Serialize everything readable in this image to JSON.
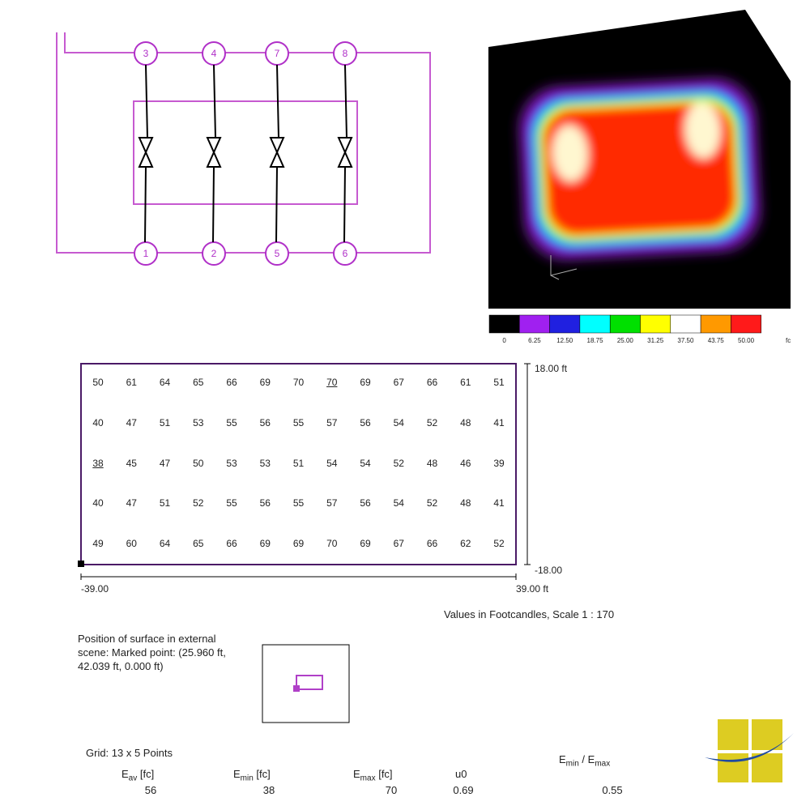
{
  "luminaires": {
    "top": [
      "3",
      "4",
      "7",
      "8"
    ],
    "bottom": [
      "1",
      "2",
      "5",
      "6"
    ]
  },
  "color_scale": {
    "labels": [
      "0",
      "6.25",
      "12.50",
      "18.75",
      "25.00",
      "31.25",
      "37.50",
      "43.75",
      "50.00"
    ],
    "unit": "fc"
  },
  "grid_values": [
    [
      50,
      61,
      64,
      65,
      66,
      69,
      70,
      70,
      69,
      67,
      66,
      61,
      51
    ],
    [
      40,
      47,
      51,
      53,
      55,
      56,
      55,
      57,
      56,
      54,
      52,
      48,
      41
    ],
    [
      38,
      45,
      47,
      50,
      53,
      53,
      51,
      54,
      54,
      52,
      48,
      46,
      39
    ],
    [
      40,
      47,
      51,
      52,
      55,
      56,
      55,
      57,
      56,
      54,
      52,
      48,
      41
    ],
    [
      49,
      60,
      64,
      65,
      66,
      69,
      69,
      70,
      69,
      67,
      66,
      62,
      52
    ]
  ],
  "axes": {
    "y_top": "18.00 ft",
    "y_bottom": "-18.00",
    "x_left": "-39.00",
    "x_right": "39.00 ft"
  },
  "scale_note": "Values in Footcandles, Scale 1 : 170",
  "position_note": "Position of surface in external scene: Marked point: (25.960 ft, 42.039 ft, 0.000 ft)",
  "grid_note": "Grid: 13 x 5 Points",
  "stats": [
    {
      "symbol": "E",
      "sub": "av",
      "unit": "[fc]",
      "value": "56"
    },
    {
      "symbol": "E",
      "sub": "min",
      "unit": "[fc]",
      "value": "38"
    },
    {
      "symbol": "E",
      "sub": "max",
      "unit": "[fc]",
      "value": "70"
    },
    {
      "symbol": "u0",
      "value": "0.69"
    },
    {
      "symbol": "E",
      "sub": "min",
      "separator": "/",
      "symbol2": "E",
      "sub2": "max",
      "value": "0.55"
    }
  ]
}
